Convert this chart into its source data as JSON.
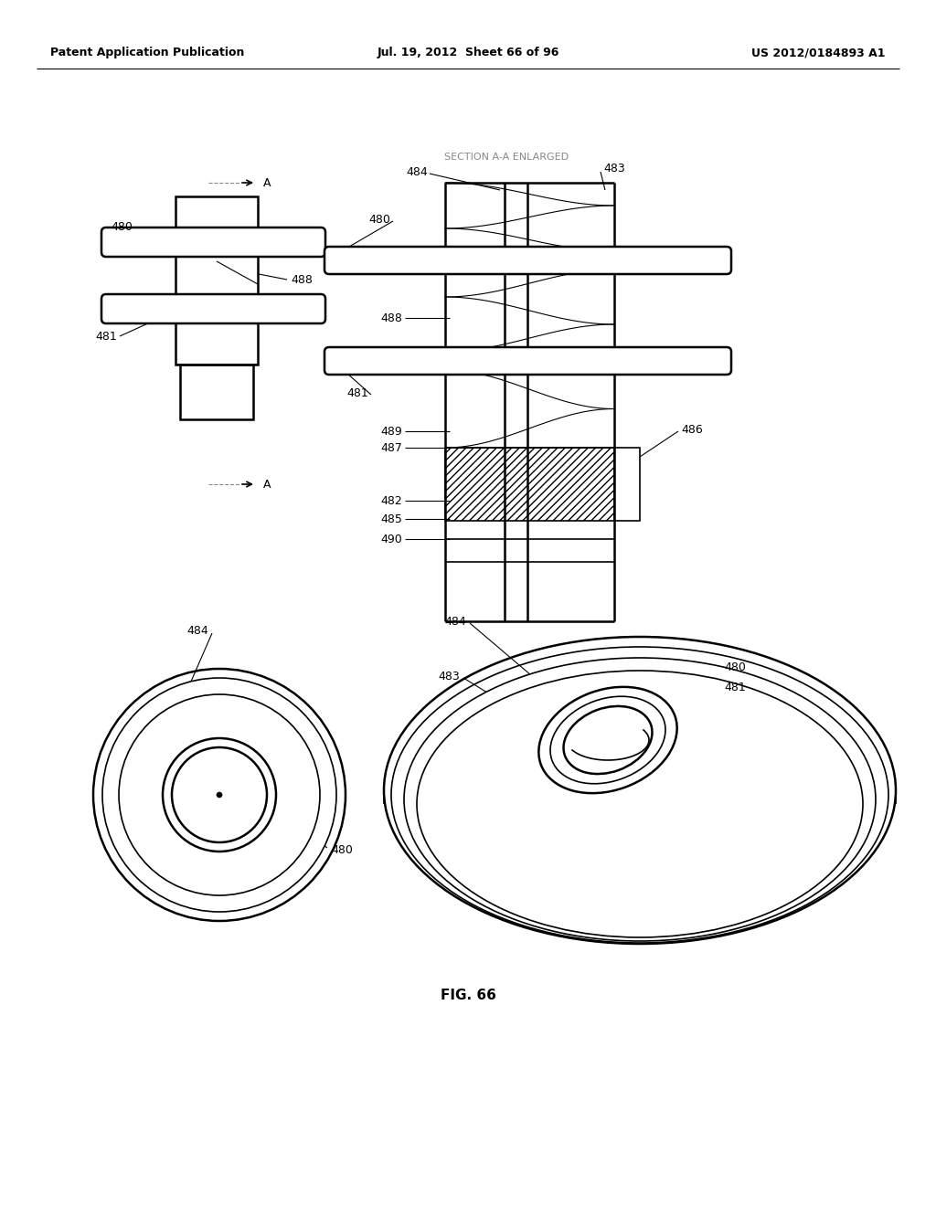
{
  "title": "FIG. 66",
  "header_left": "Patent Application Publication",
  "header_center": "Jul. 19, 2012  Sheet 66 of 96",
  "header_right": "US 2012/0184893 A1",
  "bg_color": "#ffffff",
  "line_color": "#000000",
  "section_label": "SECTION A-A ENLARGED"
}
